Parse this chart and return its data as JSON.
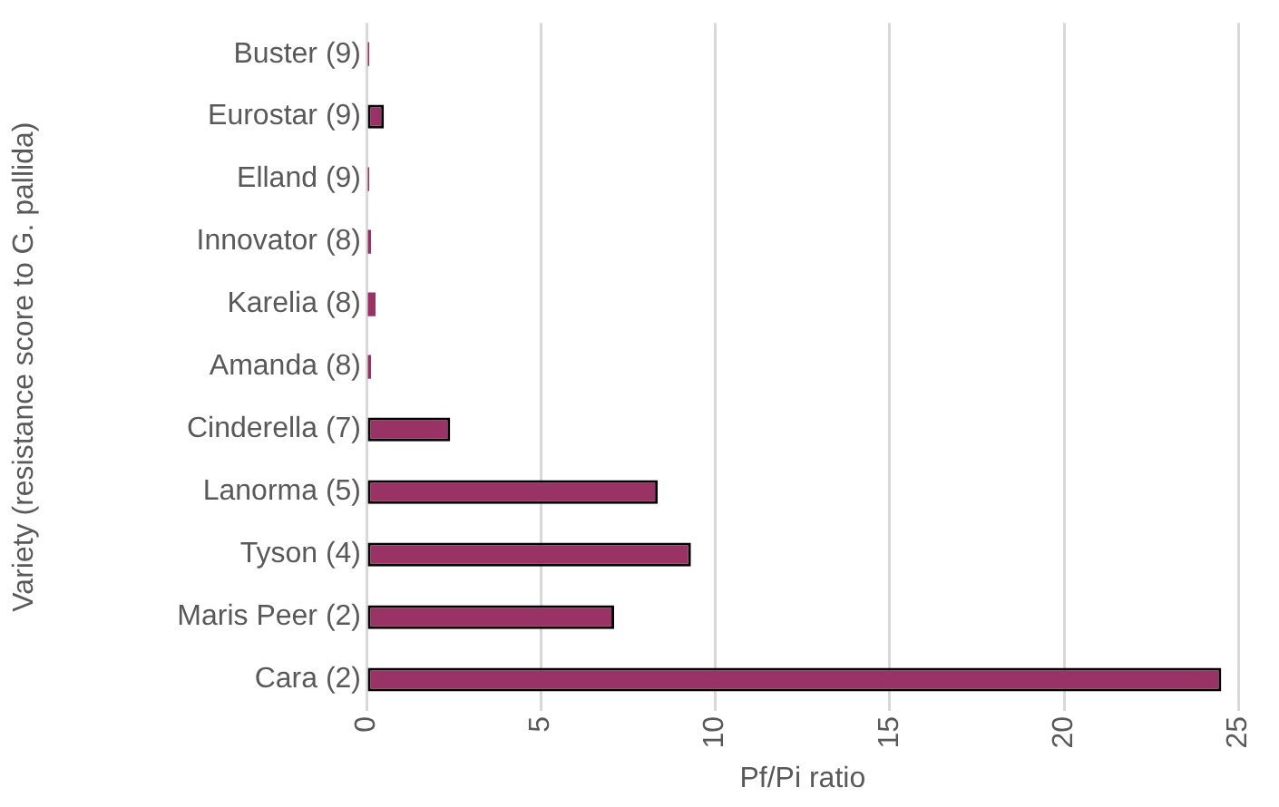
{
  "chart_data": {
    "type": "bar",
    "orientation": "horizontal",
    "xlabel": "Pf/Pi ratio",
    "ylabel": "Variety (resistance score to G. pallida)",
    "categories": [
      "Buster (9)",
      "Eurostar (9)",
      "Elland (9)",
      "Innovator (8)",
      "Karelia (8)",
      "Amanda (8)",
      "Cinderella (7)",
      "Lanorma (5)",
      "Tyson (4)",
      "Maris Peer (2)",
      "Cara (2)"
    ],
    "values": [
      0.08,
      0.5,
      0.08,
      0.13,
      0.26,
      0.13,
      2.4,
      8.35,
      9.3,
      7.1,
      24.5
    ],
    "color": "#993366",
    "xlim": [
      0,
      25
    ],
    "xticks": [
      0,
      5,
      10,
      15,
      20,
      25
    ],
    "grid": "x",
    "legend": false
  }
}
